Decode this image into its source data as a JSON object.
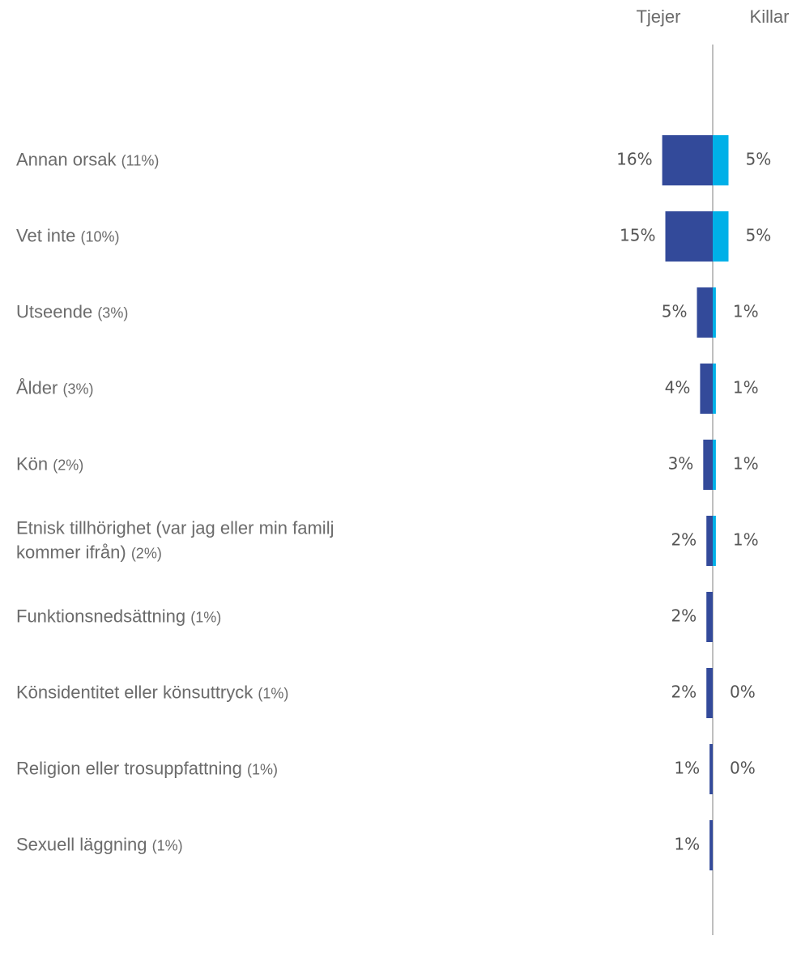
{
  "chart_data": {
    "type": "diverging-bar",
    "categories": [
      "Annan orsak",
      "Vet inte",
      "Utseende",
      "Ålder",
      "Kön",
      "Etnisk tillhörighet (var jag eller min familj kommer ifrån)",
      "Funktionsnedsättning",
      "Könsidentitet eller könsuttryck",
      "Religion eller trosuppfattning",
      "Sexuell läggning"
    ],
    "totals": {
      "values": [
        11,
        10,
        3,
        3,
        2,
        2,
        1,
        1,
        1,
        1
      ],
      "value_labels": [
        "(11%)",
        "(10%)",
        "(3%)",
        "(3%)",
        "(2%)",
        "(2%)",
        "(1%)",
        "(1%)",
        "(1%)",
        "(1%)"
      ]
    },
    "series": [
      {
        "name": "Tjejer",
        "color": "#334a9a",
        "values": [
          16,
          15,
          5,
          4,
          3,
          2,
          2,
          2,
          1,
          1
        ],
        "value_labels": [
          "16%",
          "15%",
          "5%",
          "4%",
          "3%",
          "2%",
          "2%",
          "2%",
          "1%",
          "1%"
        ]
      },
      {
        "name": "Killar",
        "color": "#00b0e8",
        "values": [
          5,
          5,
          1,
          1,
          1,
          1,
          null,
          0,
          0,
          null
        ],
        "value_labels": [
          "5%",
          "5%",
          "1%",
          "1%",
          "1%",
          "1%",
          null,
          "0%",
          "0%",
          null
        ]
      }
    ]
  }
}
